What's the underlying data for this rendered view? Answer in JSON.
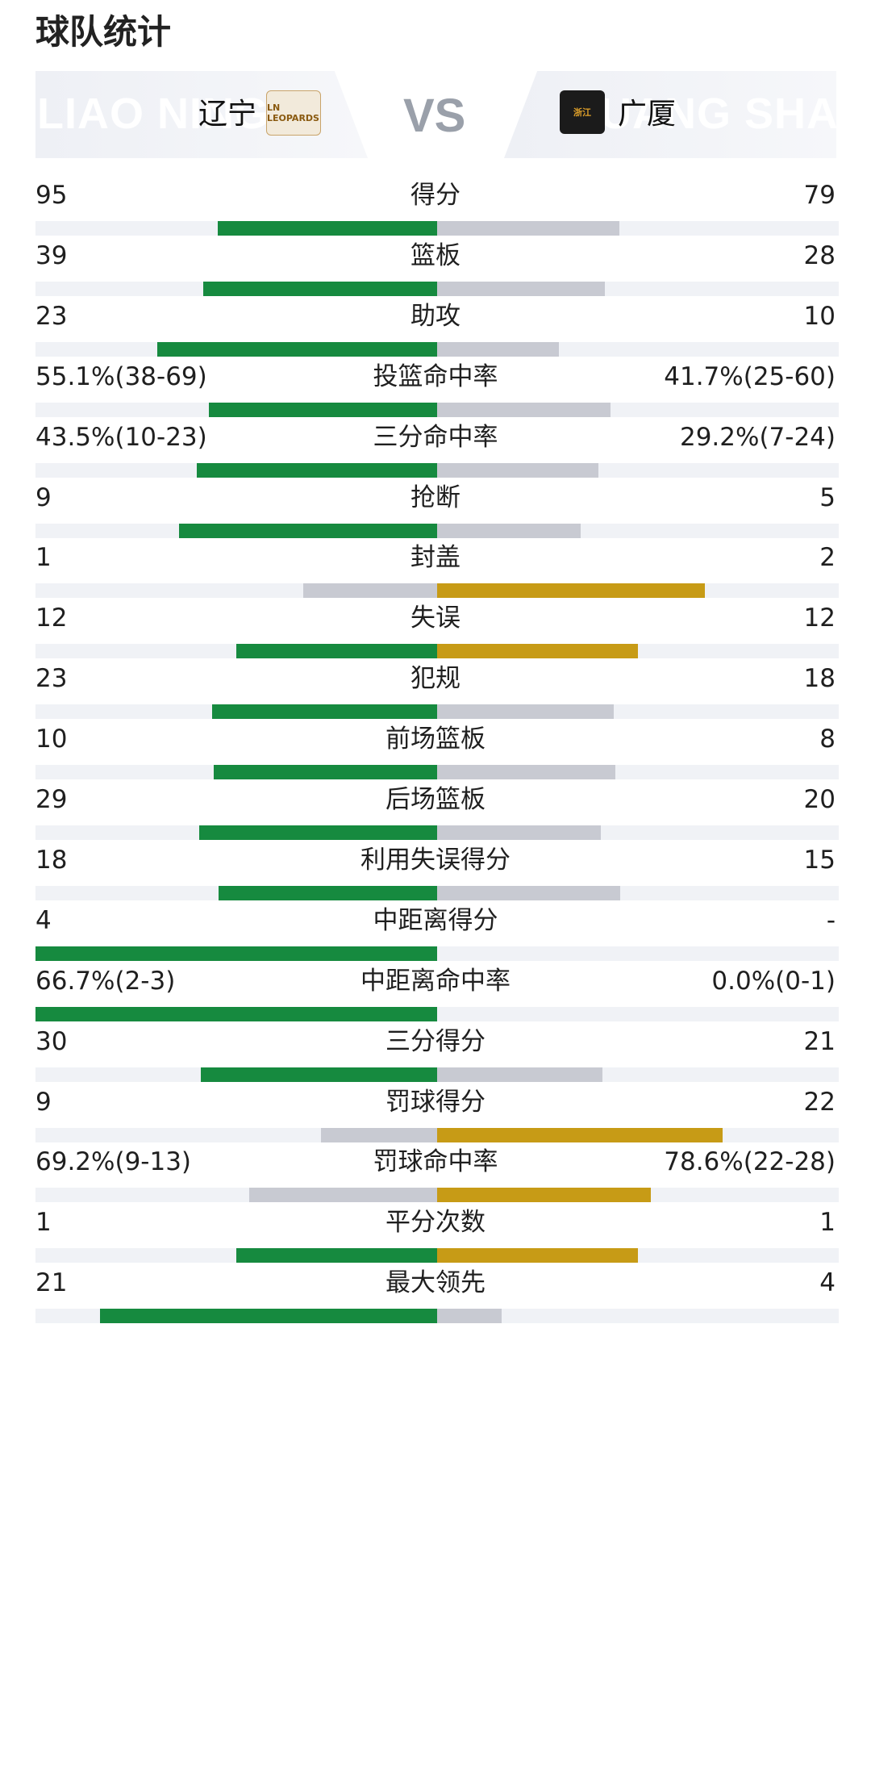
{
  "page_title": "球队统计",
  "colors": {
    "leader_home": "#168a3f",
    "leader_away": "#c79b16",
    "trailer": "#c8cad2",
    "track": "#f0f2f6"
  },
  "header": {
    "home": {
      "watermark": "LIAO NING",
      "name": "辽宁",
      "logo_text": "LN LEOPARDS",
      "logo_icon": "leopard-logo"
    },
    "vs": "VS",
    "away": {
      "watermark": "GUANG SHA",
      "name": "广厦",
      "logo_text": "浙江",
      "logo_icon": "lion-logo"
    }
  },
  "stats": [
    {
      "label": "得分",
      "home": "95",
      "away": "79",
      "home_share": 0.546,
      "away_share": 0.454,
      "leader": "home"
    },
    {
      "label": "篮板",
      "home": "39",
      "away": "28",
      "home_share": 0.582,
      "away_share": 0.418,
      "leader": "home"
    },
    {
      "label": "助攻",
      "home": "23",
      "away": "10",
      "home_share": 0.697,
      "away_share": 0.303,
      "leader": "home"
    },
    {
      "label": "投篮命中率",
      "home": "55.1%(38-69)",
      "away": "41.7%(25-60)",
      "home_share": 0.569,
      "away_share": 0.431,
      "leader": "home"
    },
    {
      "label": "三分命中率",
      "home": "43.5%(10-23)",
      "away": "29.2%(7-24)",
      "home_share": 0.598,
      "away_share": 0.402,
      "leader": "home"
    },
    {
      "label": "抢断",
      "home": "9",
      "away": "5",
      "home_share": 0.643,
      "away_share": 0.357,
      "leader": "home"
    },
    {
      "label": "封盖",
      "home": "1",
      "away": "2",
      "home_share": 0.333,
      "away_share": 0.667,
      "leader": "away"
    },
    {
      "label": "失误",
      "home": "12",
      "away": "12",
      "home_share": 0.5,
      "away_share": 0.5,
      "leader": "tie"
    },
    {
      "label": "犯规",
      "home": "23",
      "away": "18",
      "home_share": 0.561,
      "away_share": 0.439,
      "leader": "home"
    },
    {
      "label": "前场篮板",
      "home": "10",
      "away": "8",
      "home_share": 0.556,
      "away_share": 0.444,
      "leader": "home"
    },
    {
      "label": "后场篮板",
      "home": "29",
      "away": "20",
      "home_share": 0.592,
      "away_share": 0.408,
      "leader": "home"
    },
    {
      "label": "利用失误得分",
      "home": "18",
      "away": "15",
      "home_share": 0.545,
      "away_share": 0.455,
      "leader": "home"
    },
    {
      "label": "中距离得分",
      "home": "4",
      "away": "-",
      "home_share": 1.0,
      "away_share": 0.0,
      "leader": "home"
    },
    {
      "label": "中距离命中率",
      "home": "66.7%(2-3)",
      "away": "0.0%(0-1)",
      "home_share": 1.0,
      "away_share": 0.0,
      "leader": "home"
    },
    {
      "label": "三分得分",
      "home": "30",
      "away": "21",
      "home_share": 0.588,
      "away_share": 0.412,
      "leader": "home"
    },
    {
      "label": "罚球得分",
      "home": "9",
      "away": "22",
      "home_share": 0.29,
      "away_share": 0.71,
      "leader": "away"
    },
    {
      "label": "罚球命中率",
      "home": "69.2%(9-13)",
      "away": "78.6%(22-28)",
      "home_share": 0.468,
      "away_share": 0.532,
      "leader": "away"
    },
    {
      "label": "平分次数",
      "home": "1",
      "away": "1",
      "home_share": 0.5,
      "away_share": 0.5,
      "leader": "tie"
    },
    {
      "label": "最大领先",
      "home": "21",
      "away": "4",
      "home_share": 0.84,
      "away_share": 0.16,
      "leader": "home"
    }
  ]
}
